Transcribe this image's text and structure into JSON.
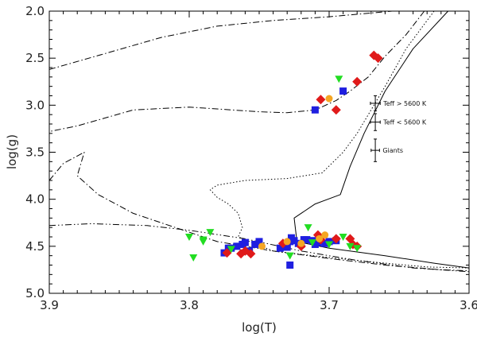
{
  "chart_data": {
    "type": "scatter",
    "xlabel": "log(T)",
    "ylabel": "log(g)",
    "xlim": [
      3.9,
      3.6
    ],
    "ylim": [
      5.0,
      2.0
    ],
    "x_major_ticks": [
      3.9,
      3.8,
      3.7,
      3.6
    ],
    "x_tick_labels": [
      "3.9",
      "3.8",
      "3.7",
      "3.6"
    ],
    "y_major_ticks": [
      2.0,
      2.5,
      3.0,
      3.5,
      4.0,
      4.5,
      5.0
    ],
    "y_tick_labels": [
      "2.0",
      "2.5",
      "3.0",
      "3.5",
      "4.0",
      "4.5",
      "5.0"
    ],
    "grid": false,
    "curves": [
      {
        "style": "solid",
        "points": [
          [
            3.615,
            2.0
          ],
          [
            3.64,
            2.4
          ],
          [
            3.66,
            2.85
          ],
          [
            3.675,
            3.3
          ],
          [
            3.685,
            3.65
          ],
          [
            3.692,
            3.95
          ],
          [
            3.71,
            4.05
          ],
          [
            3.725,
            4.2
          ],
          [
            3.723,
            4.45
          ],
          [
            3.7,
            4.52
          ],
          [
            3.66,
            4.6
          ],
          [
            3.625,
            4.68
          ],
          [
            3.6,
            4.73
          ]
        ]
      },
      {
        "style": "dotted",
        "points": [
          [
            3.625,
            2.0
          ],
          [
            3.645,
            2.4
          ],
          [
            3.66,
            2.8
          ],
          [
            3.68,
            3.3
          ],
          [
            3.69,
            3.5
          ],
          [
            3.705,
            3.72
          ],
          [
            3.73,
            3.78
          ],
          [
            3.76,
            3.8
          ],
          [
            3.78,
            3.85
          ],
          [
            3.785,
            3.9
          ],
          [
            3.78,
            3.98
          ],
          [
            3.772,
            4.05
          ],
          [
            3.765,
            4.15
          ],
          [
            3.762,
            4.3
          ],
          [
            3.765,
            4.4
          ],
          [
            3.74,
            4.55
          ],
          [
            3.7,
            4.62
          ],
          [
            3.66,
            4.68
          ],
          [
            3.63,
            4.72
          ],
          [
            3.6,
            4.73
          ]
        ]
      },
      {
        "style": "dashdot",
        "points": [
          [
            3.632,
            2.0
          ],
          [
            3.645,
            2.25
          ],
          [
            3.66,
            2.48
          ],
          [
            3.672,
            2.7
          ],
          [
            3.685,
            2.85
          ],
          [
            3.695,
            2.95
          ],
          [
            3.71,
            3.05
          ],
          [
            3.73,
            3.08
          ],
          [
            3.75,
            3.07
          ],
          [
            3.8,
            3.02
          ],
          [
            3.84,
            3.05
          ],
          [
            3.88,
            3.22
          ],
          [
            3.9,
            3.28
          ]
        ]
      },
      {
        "style": "dashdot",
        "points": [
          [
            3.9,
            2.62
          ],
          [
            3.86,
            2.45
          ],
          [
            3.82,
            2.28
          ],
          [
            3.78,
            2.16
          ],
          [
            3.74,
            2.1
          ],
          [
            3.7,
            2.06
          ],
          [
            3.67,
            2.02
          ],
          [
            3.655,
            2.0
          ]
        ]
      },
      {
        "style": "dashdot",
        "points": [
          [
            3.9,
            3.8
          ],
          [
            3.89,
            3.62
          ],
          [
            3.875,
            3.5
          ],
          [
            3.88,
            3.75
          ],
          [
            3.865,
            3.95
          ],
          [
            3.84,
            4.15
          ],
          [
            3.81,
            4.3
          ],
          [
            3.78,
            4.45
          ],
          [
            3.74,
            4.55
          ],
          [
            3.7,
            4.63
          ],
          [
            3.66,
            4.7
          ],
          [
            3.62,
            4.75
          ],
          [
            3.6,
            4.76
          ]
        ]
      },
      {
        "style": "dashdotdot",
        "points": [
          [
            3.9,
            4.28
          ],
          [
            3.87,
            4.26
          ],
          [
            3.83,
            4.28
          ],
          [
            3.8,
            4.33
          ],
          [
            3.76,
            4.42
          ],
          [
            3.72,
            4.55
          ],
          [
            3.68,
            4.65
          ],
          [
            3.64,
            4.73
          ],
          [
            3.6,
            4.77
          ]
        ]
      }
    ],
    "series": [
      {
        "marker": "square",
        "color": "#1f1fe0",
        "points": [
          [
            3.775,
            4.57
          ],
          [
            3.772,
            4.52
          ],
          [
            3.77,
            4.52
          ],
          [
            3.766,
            4.5
          ],
          [
            3.762,
            4.48
          ],
          [
            3.76,
            4.46
          ],
          [
            3.757,
            4.55
          ],
          [
            3.753,
            4.48
          ],
          [
            3.75,
            4.45
          ],
          [
            3.735,
            4.52
          ],
          [
            3.732,
            4.5
          ],
          [
            3.73,
            4.48
          ],
          [
            3.728,
            4.45
          ],
          [
            3.725,
            4.44
          ],
          [
            3.722,
            4.47
          ],
          [
            3.72,
            4.48
          ],
          [
            3.716,
            4.43
          ],
          [
            3.712,
            4.44
          ],
          [
            3.71,
            4.48
          ],
          [
            3.708,
            4.46
          ],
          [
            3.703,
            4.47
          ],
          [
            3.7,
            4.45
          ],
          [
            3.695,
            4.44
          ],
          [
            3.727,
            4.41
          ],
          [
            3.718,
            4.43
          ],
          [
            3.728,
            4.7
          ],
          [
            3.73,
            4.51
          ],
          [
            3.71,
            3.05
          ],
          [
            3.69,
            2.85
          ]
        ]
      },
      {
        "marker": "diamond",
        "color": "#e01a1a",
        "points": [
          [
            3.773,
            4.57
          ],
          [
            3.763,
            4.58
          ],
          [
            3.76,
            4.55
          ],
          [
            3.756,
            4.58
          ],
          [
            3.733,
            4.47
          ],
          [
            3.72,
            4.5
          ],
          [
            3.708,
            4.38
          ],
          [
            3.706,
            4.43
          ],
          [
            3.695,
            4.42
          ],
          [
            3.685,
            4.42
          ],
          [
            3.68,
            4.5
          ],
          [
            3.683,
            4.48
          ],
          [
            3.706,
            2.94
          ],
          [
            3.695,
            3.05
          ],
          [
            3.68,
            2.75
          ],
          [
            3.668,
            2.47
          ],
          [
            3.665,
            2.5
          ]
        ]
      },
      {
        "marker": "triangle-down",
        "color": "#22dd22",
        "points": [
          [
            3.8,
            4.4
          ],
          [
            3.797,
            4.62
          ],
          [
            3.79,
            4.43
          ],
          [
            3.79,
            4.45
          ],
          [
            3.785,
            4.35
          ],
          [
            3.77,
            4.53
          ],
          [
            3.728,
            4.6
          ],
          [
            3.715,
            4.3
          ],
          [
            3.712,
            4.46
          ],
          [
            3.7,
            4.48
          ],
          [
            3.69,
            4.4
          ],
          [
            3.685,
            4.5
          ],
          [
            3.68,
            4.52
          ],
          [
            3.693,
            2.72
          ]
        ]
      },
      {
        "marker": "circle",
        "color": "#f5a623",
        "points": [
          [
            3.748,
            4.5
          ],
          [
            3.73,
            4.45
          ],
          [
            3.72,
            4.47
          ],
          [
            3.707,
            4.42
          ],
          [
            3.703,
            4.38
          ],
          [
            3.7,
            2.93
          ]
        ]
      }
    ],
    "error_bars": [
      {
        "label": "Teff > 5600 K",
        "logT": 3.667,
        "logg": 2.98,
        "xerr": 0.0035,
        "yerr": 0.08
      },
      {
        "label": "Teff < 5600 K",
        "logT": 3.667,
        "logg": 3.18,
        "xerr": 0.0035,
        "yerr": 0.09
      },
      {
        "label": "Giants",
        "logT": 3.667,
        "logg": 3.48,
        "xerr": 0.003,
        "yerr": 0.12
      }
    ]
  }
}
